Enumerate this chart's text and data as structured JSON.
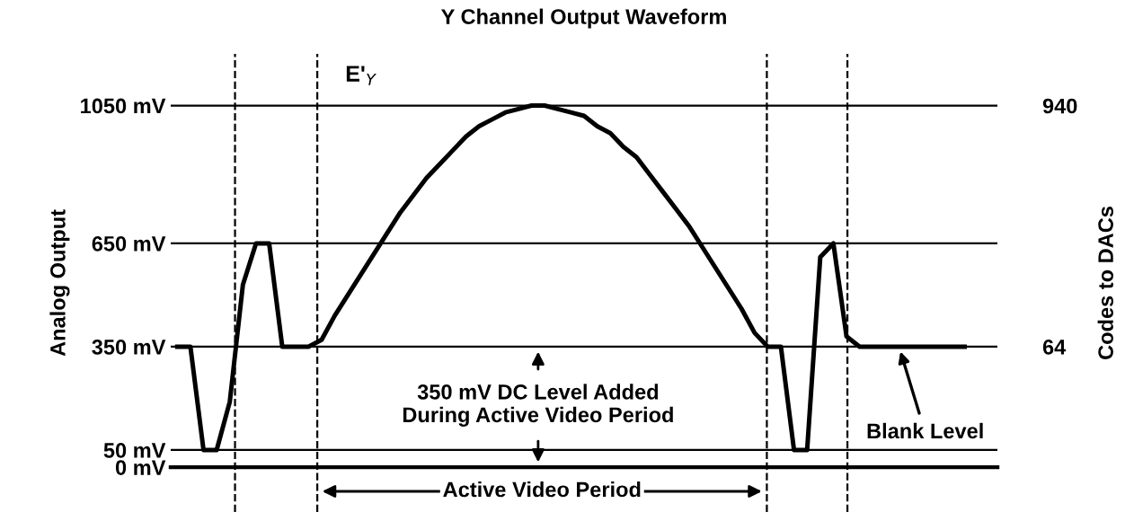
{
  "chart_data": {
    "type": "line",
    "title": "Y Channel Output Waveform",
    "ylabel": "Analog Output",
    "y2label": "Codes to DACs",
    "categories": [
      null,
      null,
      null,
      null,
      null,
      null,
      null,
      null,
      null,
      null,
      null,
      null,
      null,
      null,
      null,
      null,
      null,
      null,
      null,
      null,
      null,
      null,
      null,
      null,
      null,
      null,
      null,
      null,
      null,
      null,
      null,
      null,
      null,
      null,
      null,
      null,
      null,
      null,
      null,
      null,
      null,
      null,
      null,
      null,
      null,
      null,
      null,
      null,
      null,
      null,
      null,
      null,
      null,
      null,
      null,
      null,
      null,
      null,
      null,
      null,
      null
    ],
    "series": [
      {
        "color": "#000000",
        "values": [
          350,
          350,
          50,
          50,
          190,
          530,
          650,
          650,
          350,
          350,
          350,
          370,
          440,
          500,
          560,
          620,
          680,
          740,
          790,
          840,
          880,
          920,
          960,
          990,
          1010,
          1030,
          1040,
          1050,
          1050,
          1040,
          1030,
          1020,
          990,
          970,
          930,
          900,
          850,
          800,
          750,
          700,
          640,
          580,
          520,
          460,
          390,
          350,
          350,
          50,
          50,
          610,
          650,
          380,
          350,
          350,
          350,
          350,
          350,
          350,
          350,
          350,
          350
        ]
      }
    ],
    "ylim": [
      -130,
      1200
    ],
    "yticks": [
      {
        "value": 0,
        "label": "0 mV"
      },
      {
        "value": 50,
        "label": "50 mV"
      },
      {
        "value": 350,
        "label": "350 mV"
      },
      {
        "value": 650,
        "label": "650 mV"
      },
      {
        "value": 1050,
        "label": "1050 mV"
      }
    ],
    "y2lim": [
      -537,
      1128
    ],
    "y2ticks": [
      64,
      940
    ],
    "grid": "y",
    "marker": "none",
    "line_style": "solid",
    "annotations": [
      "E'$_{Y}$",
      "350 mV DC Level Added\nDuring Active Video Period",
      "Active Video Period",
      "Blank Level"
    ]
  }
}
